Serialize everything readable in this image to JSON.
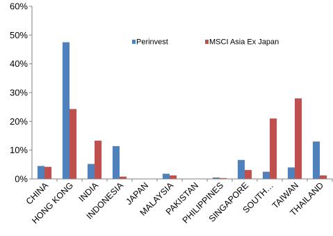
{
  "chart_data": {
    "type": "bar",
    "categories": [
      "CHINA",
      "HONG KONG",
      "INDIA",
      "INDONESIA",
      "JAPAN",
      "MALAYSIA",
      "PAKISTAN",
      "PHILIPPINES",
      "SINGAPORE",
      "SOUTH…",
      "TAIWAN",
      "THAILAND"
    ],
    "series": [
      {
        "name": "Perinvest",
        "color": "#4f81bd",
        "values": [
          4.5,
          47.5,
          5.2,
          11.4,
          0,
          1.8,
          0,
          0.5,
          6.6,
          2.5,
          4.0,
          13.0
        ]
      },
      {
        "name": "MSCI Asia Ex Japan",
        "color": "#c0504d",
        "values": [
          4.2,
          24.3,
          13.3,
          0.8,
          0,
          1.2,
          0,
          0.3,
          3.1,
          21.0,
          28.0,
          1.2
        ]
      }
    ],
    "y_ticks": [
      "0%",
      "10%",
      "20%",
      "30%",
      "40%",
      "50%",
      "60%"
    ],
    "ylim": [
      0,
      60
    ],
    "y_unit": "%",
    "grid": false,
    "legend_placement": "top-right"
  }
}
